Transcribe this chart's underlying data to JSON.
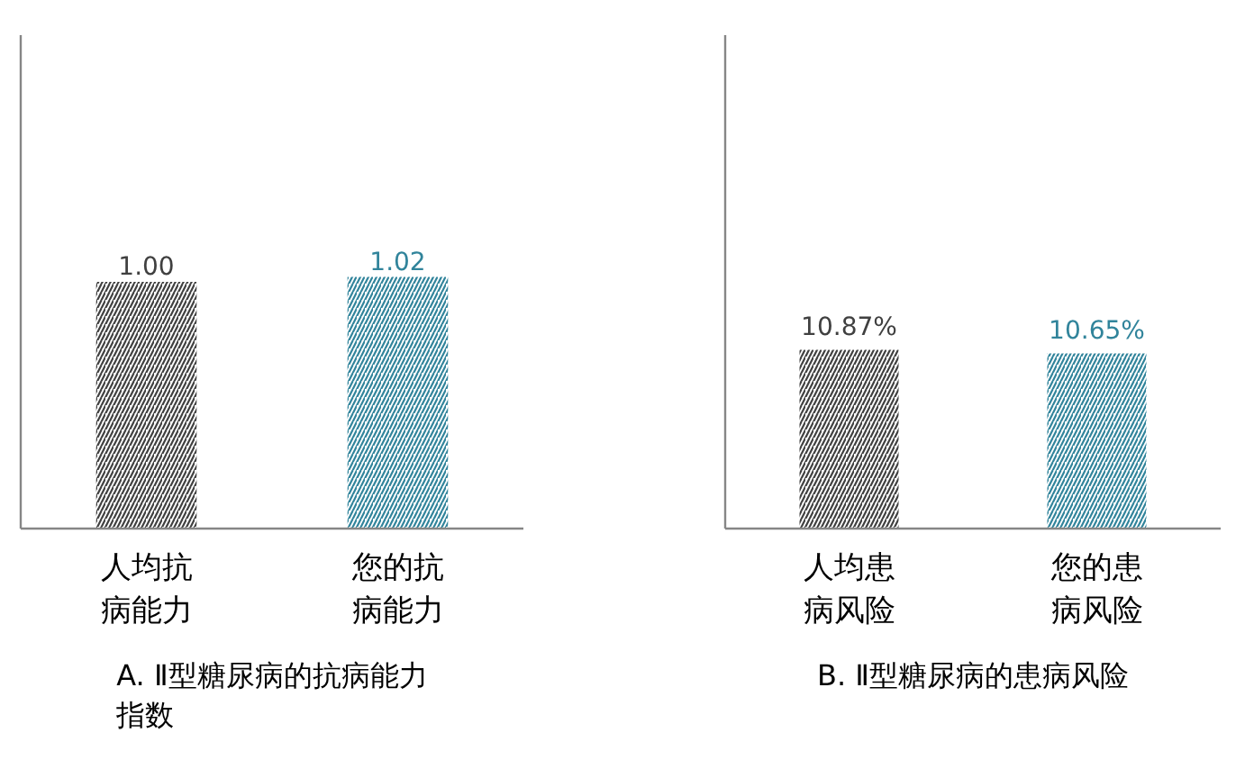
{
  "chart_data": [
    {
      "type": "bar",
      "title": "A. Ⅱ型糖尿病的抗病能力指数",
      "categories": [
        "人均抗病能力",
        "您的抗病能力"
      ],
      "values": [
        1.0,
        1.02
      ],
      "value_labels": [
        "1.00",
        "1.02"
      ],
      "colors": [
        "#404040",
        "#31849b"
      ],
      "ylim": [
        0,
        2
      ]
    },
    {
      "type": "bar",
      "title": "B. Ⅱ型糖尿病的患病风险",
      "categories": [
        "人均患病风险",
        "您的患病风险"
      ],
      "values": [
        10.87,
        10.65
      ],
      "value_labels": [
        "10.87%",
        "10.65%"
      ],
      "colors": [
        "#404040",
        "#31849b"
      ],
      "ylim": [
        0,
        30
      ]
    }
  ]
}
